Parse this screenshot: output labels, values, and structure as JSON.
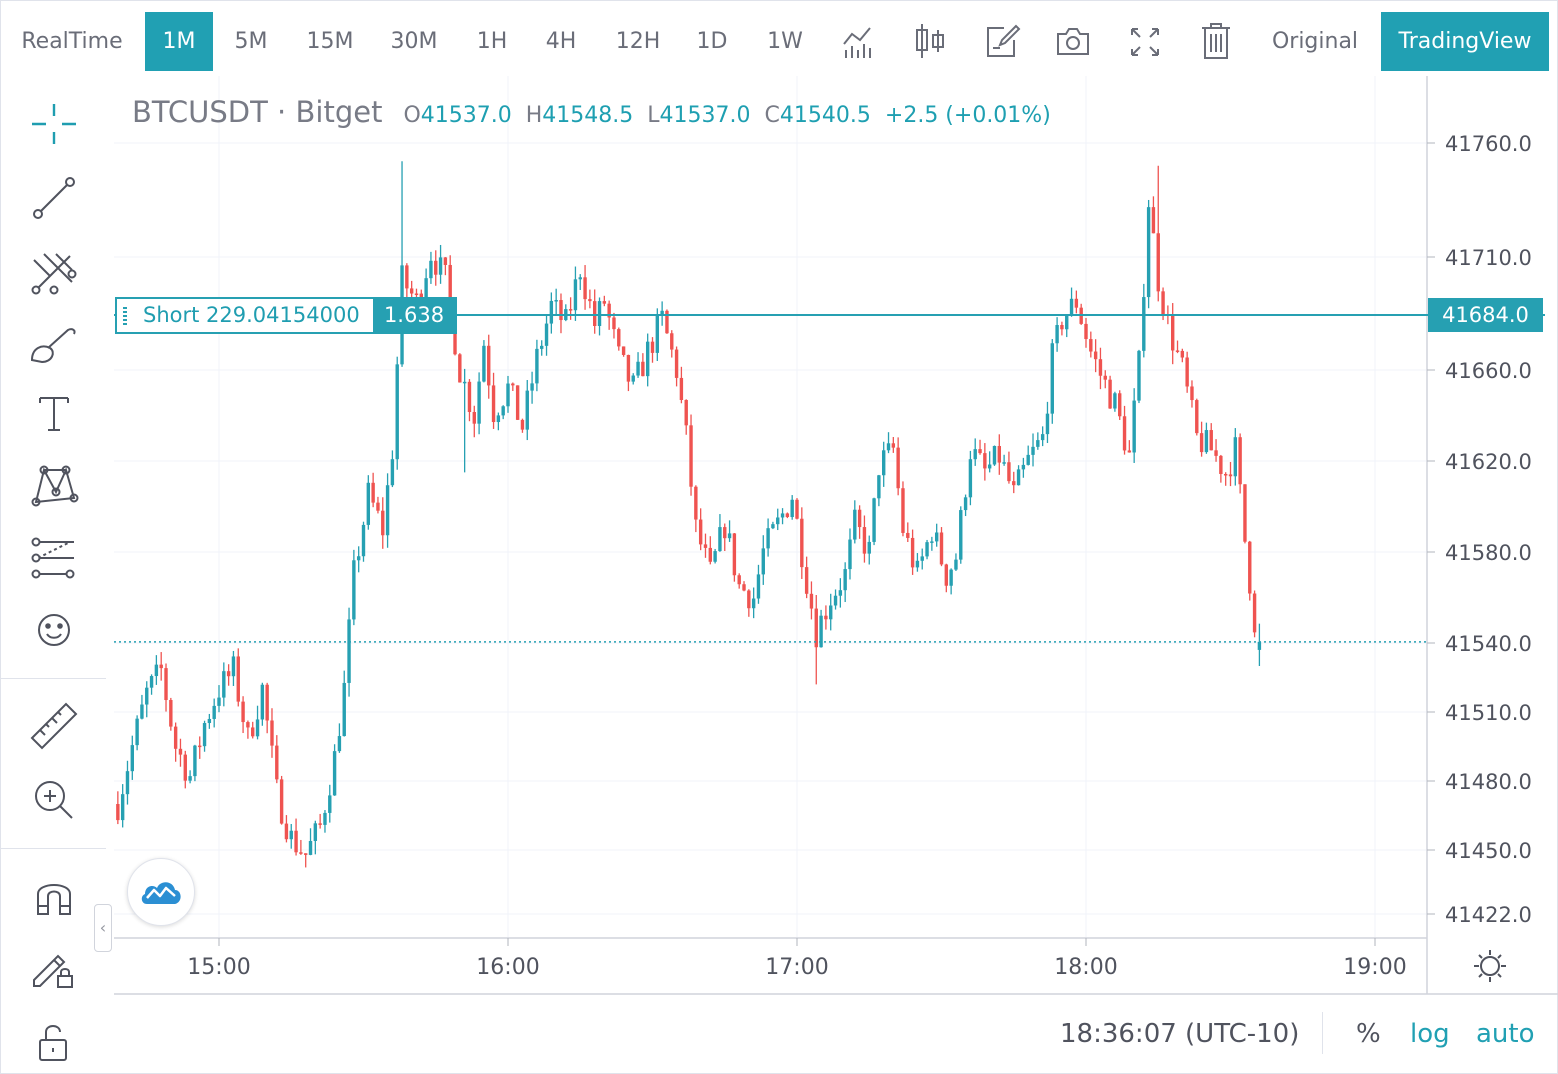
{
  "toolbar": {
    "intervals": [
      "RealTime",
      "1M",
      "5M",
      "15M",
      "30M",
      "1H",
      "4H",
      "12H",
      "1D",
      "1W"
    ],
    "active_interval": "1M",
    "icons": [
      "indicators-icon",
      "chart-type-icon",
      "edit-icon",
      "camera-icon",
      "fullscreen-icon",
      "trash-icon"
    ],
    "original_label": "Original",
    "tradingview_label": "TradingView"
  },
  "left_toolbar": {
    "icons": [
      "crosshair-icon",
      "trend-line-icon",
      "fib-icon",
      "brush-icon",
      "text-icon",
      "pattern-icon",
      "prediction-icon",
      "emoji-icon",
      "ruler-icon",
      "zoom-in-icon",
      "magnet-icon",
      "lock-drawing-icon",
      "unlock-icon"
    ]
  },
  "legend": {
    "symbol": "BTCUSDT",
    "separator": " · ",
    "exchange": "Bitget",
    "o_label": "O",
    "o_value": "41537.0",
    "h_label": "H",
    "h_value": "41548.5",
    "l_label": "L",
    "l_value": "41537.0",
    "c_label": "C",
    "c_value": "41540.5",
    "change": "+2.5 (+0.01%)"
  },
  "order_line": {
    "label": "Short 229.04154000",
    "qty": "1.638",
    "price_label": "41684.0"
  },
  "bottom_bar": {
    "time": "18:36:07 (UTC-10)",
    "percent_label": "%",
    "log_label": "log",
    "auto_label": "auto"
  },
  "chart_data": {
    "type": "candlestick",
    "title": "BTCUSDT · Bitget",
    "x_axis": {
      "tick_labels": [
        "15:00",
        "16:00",
        "17:00",
        "18:00",
        "19:00"
      ],
      "range": [
        "14:38",
        "19:06"
      ]
    },
    "y_axis": {
      "tick_values": [
        41760.0,
        41710.0,
        41660.0,
        41620.0,
        41580.0,
        41540.0,
        41510.0,
        41480.0,
        41450.0,
        41422.0
      ],
      "tick_labels": [
        "41760.0",
        "41710.0",
        "41660.0",
        "41620.0",
        "41580.0",
        "41540.0",
        "41510.0",
        "41480.0",
        "41450.0",
        "41422.0"
      ],
      "position": "right"
    },
    "horizontal_lines": [
      {
        "name": "Short 229.04154000",
        "price": 41684.0,
        "style": "solid"
      },
      {
        "name": "last price",
        "price": 41540.5,
        "style": "dotted"
      }
    ],
    "colors": {
      "up": "#26a0b2",
      "down": "#ef5350"
    },
    "grid": true,
    "anchors": [
      {
        "t": "14:39",
        "p": 41470
      },
      {
        "t": "14:42",
        "p": 41495
      },
      {
        "t": "14:45",
        "p": 41518
      },
      {
        "t": "14:48",
        "p": 41528
      },
      {
        "t": "14:51",
        "p": 41495
      },
      {
        "t": "14:54",
        "p": 41482
      },
      {
        "t": "14:57",
        "p": 41505
      },
      {
        "t": "15:00",
        "p": 41520
      },
      {
        "t": "15:03",
        "p": 41528
      },
      {
        "t": "15:06",
        "p": 41498
      },
      {
        "t": "15:09",
        "p": 41520
      },
      {
        "t": "15:12",
        "p": 41475
      },
      {
        "t": "15:15",
        "p": 41455
      },
      {
        "t": "15:18",
        "p": 41448
      },
      {
        "t": "15:21",
        "p": 41460
      },
      {
        "t": "15:24",
        "p": 41490
      },
      {
        "t": "15:26",
        "p": 41520
      },
      {
        "t": "15:28",
        "p": 41570
      },
      {
        "t": "15:31",
        "p": 41605
      },
      {
        "t": "15:34",
        "p": 41590
      },
      {
        "t": "15:36",
        "p": 41625
      },
      {
        "t": "15:38",
        "p": 41700
      },
      {
        "t": "15:41",
        "p": 41690
      },
      {
        "t": "15:44",
        "p": 41712
      },
      {
        "t": "15:47",
        "p": 41700
      },
      {
        "t": "15:50",
        "p": 41660
      },
      {
        "t": "15:53",
        "p": 41640
      },
      {
        "t": "15:55",
        "p": 41672
      },
      {
        "t": "15:57",
        "p": 41642
      },
      {
        "t": "16:00",
        "p": 41652
      },
      {
        "t": "16:03",
        "p": 41635
      },
      {
        "t": "16:06",
        "p": 41665
      },
      {
        "t": "16:09",
        "p": 41688
      },
      {
        "t": "16:12",
        "p": 41680
      },
      {
        "t": "16:15",
        "p": 41705
      },
      {
        "t": "16:18",
        "p": 41680
      },
      {
        "t": "16:20",
        "p": 41690
      },
      {
        "t": "16:23",
        "p": 41665
      },
      {
        "t": "16:26",
        "p": 41652
      },
      {
        "t": "16:29",
        "p": 41668
      },
      {
        "t": "16:32",
        "p": 41682
      },
      {
        "t": "16:35",
        "p": 41660
      },
      {
        "t": "16:37",
        "p": 41630
      },
      {
        "t": "16:39",
        "p": 41590
      },
      {
        "t": "16:42",
        "p": 41570
      },
      {
        "t": "16:45",
        "p": 41592
      },
      {
        "t": "16:48",
        "p": 41565
      },
      {
        "t": "16:51",
        "p": 41560
      },
      {
        "t": "16:53",
        "p": 41580
      },
      {
        "t": "16:56",
        "p": 41592
      },
      {
        "t": "16:59",
        "p": 41605
      },
      {
        "t": "17:02",
        "p": 41568
      },
      {
        "t": "17:04",
        "p": 41545
      },
      {
        "t": "17:07",
        "p": 41560
      },
      {
        "t": "17:10",
        "p": 41570
      },
      {
        "t": "17:12",
        "p": 41592
      },
      {
        "t": "17:15",
        "p": 41580
      },
      {
        "t": "17:17",
        "p": 41618
      },
      {
        "t": "17:20",
        "p": 41625
      },
      {
        "t": "17:22",
        "p": 41590
      },
      {
        "t": "17:25",
        "p": 41570
      },
      {
        "t": "17:28",
        "p": 41590
      },
      {
        "t": "17:31",
        "p": 41570
      },
      {
        "t": "17:33",
        "p": 41578
      },
      {
        "t": "17:36",
        "p": 41625
      },
      {
        "t": "17:39",
        "p": 41615
      },
      {
        "t": "17:42",
        "p": 41622
      },
      {
        "t": "17:45",
        "p": 41605
      },
      {
        "t": "17:48",
        "p": 41620
      },
      {
        "t": "17:51",
        "p": 41630
      },
      {
        "t": "17:53",
        "p": 41665
      },
      {
        "t": "17:55",
        "p": 41682
      },
      {
        "t": "17:58",
        "p": 41690
      },
      {
        "t": "18:01",
        "p": 41668
      },
      {
        "t": "18:03",
        "p": 41658
      },
      {
        "t": "18:06",
        "p": 41645
      },
      {
        "t": "18:09",
        "p": 41622
      },
      {
        "t": "18:11",
        "p": 41662
      },
      {
        "t": "18:13",
        "p": 41735
      },
      {
        "t": "18:15",
        "p": 41700
      },
      {
        "t": "18:17",
        "p": 41680
      },
      {
        "t": "18:20",
        "p": 41660
      },
      {
        "t": "18:23",
        "p": 41630
      },
      {
        "t": "18:26",
        "p": 41625
      },
      {
        "t": "18:29",
        "p": 41615
      },
      {
        "t": "18:31",
        "p": 41625
      },
      {
        "t": "18:33",
        "p": 41585
      },
      {
        "t": "18:35",
        "p": 41550
      },
      {
        "t": "18:36",
        "p": 41540.5
      }
    ]
  }
}
